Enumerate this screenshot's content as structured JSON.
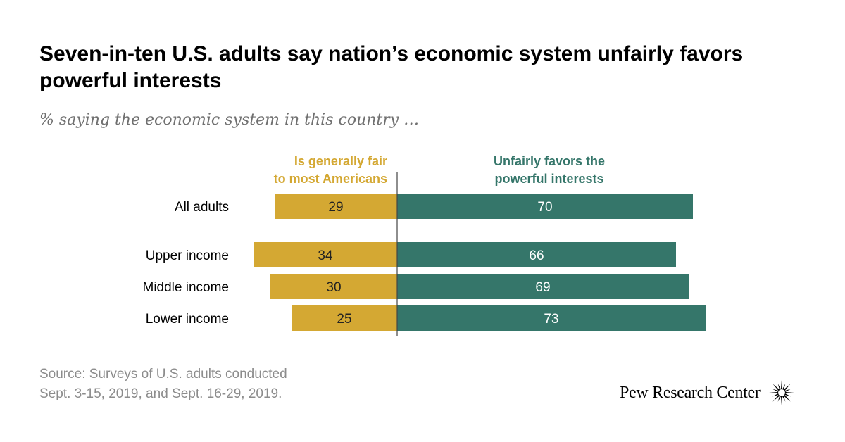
{
  "title": "Seven-in-ten U.S. adults say nation’s economic system unfairly favors powerful interests",
  "subtitle": "% saying the economic system in this country …",
  "source": {
    "line1": "Source: Surveys of U.S. adults conducted",
    "line2": "Sept. 3-15, 2019, and Sept. 16-29, 2019."
  },
  "logo": {
    "text": "Pew Research Center",
    "icon": "pew-sunburst-icon"
  },
  "colors": {
    "fair": "#d4a833",
    "unfair": "#35766a",
    "axis": "#444444"
  },
  "chart_data": {
    "type": "bar",
    "orientation": "horizontal-diverging",
    "categories": [
      "All adults",
      "Upper income",
      "Middle income",
      "Lower income"
    ],
    "series": [
      {
        "name": "Is generally fair to most Americans",
        "label_lines": [
          "Is generally fair",
          "to most Americans"
        ],
        "values": [
          29,
          34,
          30,
          25
        ]
      },
      {
        "name": "Unfairly favors the powerful interests",
        "label_lines": [
          "Unfairly favors the",
          "powerful interests"
        ],
        "values": [
          70,
          66,
          69,
          73
        ]
      }
    ]
  }
}
